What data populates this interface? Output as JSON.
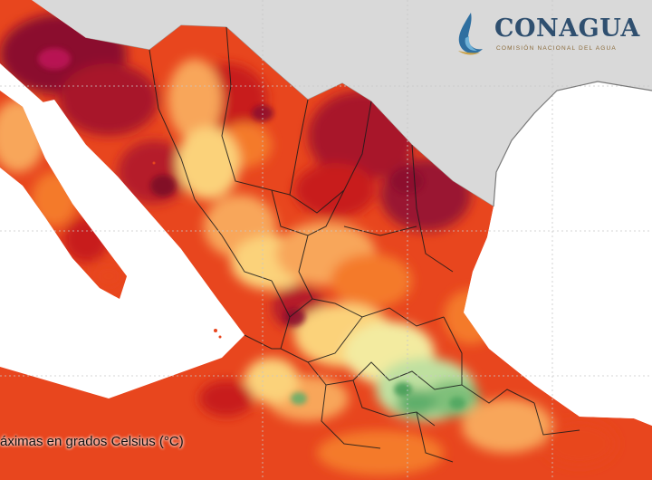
{
  "logo": {
    "name": "CONAGUA",
    "tagline": "COMISIÓN NACIONAL DEL AGUA"
  },
  "caption": "áximas en grados Celsius (°C)",
  "colors": {
    "ocean": "#ffffff",
    "foreign_land": "#d9d9d9",
    "extreme_heat": "#8b0f2e",
    "very_hot": "#c81e1e",
    "hot": "#e8461e",
    "warm": "#f47a2a",
    "mild_warm": "#f8a65a",
    "mild": "#fbd27a",
    "cool": "#f3eba0",
    "cooler": "#bfe0a0",
    "coolest": "#5fae6a",
    "state_borders": "#1a1a1a",
    "brand_blue": "#2f4f6f"
  }
}
